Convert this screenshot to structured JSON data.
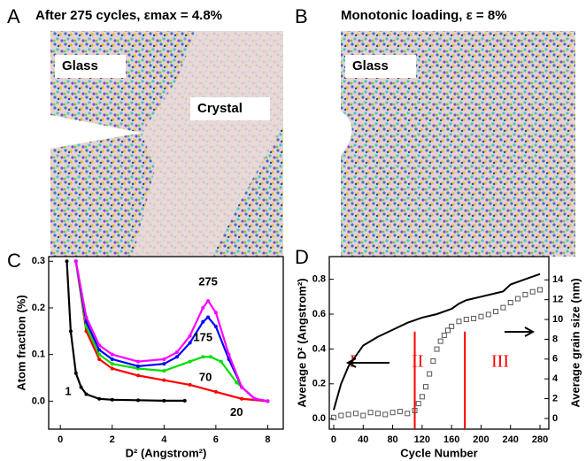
{
  "panels": [
    {
      "letter": "A",
      "title": "After 275 cycles, εmax = 4.8%",
      "labels": [
        "Glass",
        "Crystal"
      ]
    },
    {
      "letter": "B",
      "title": "Monotonic loading, ε = 8%",
      "labels": [
        "Glass"
      ]
    }
  ],
  "chart_data": [
    {
      "type": "line",
      "letter": "C",
      "xlabel": "D² (Angstrom²)",
      "ylabel": "Atom fraction (%)",
      "xlim": [
        -0.45,
        8.6
      ],
      "ylim": [
        -0.06,
        0.31
      ],
      "xticks": [
        0,
        2,
        4,
        6,
        8
      ],
      "yticks": [
        {
          "value": 0,
          "label": "0.0"
        },
        0.1,
        0.2,
        0.3
      ],
      "series": [
        {
          "name": "1",
          "color": "#000000",
          "x": [
            0.25,
            0.4,
            0.6,
            0.8,
            1,
            1.5,
            2,
            3,
            4,
            4.8
          ],
          "values": [
            0.3,
            0.15,
            0.06,
            0.03,
            0.015,
            0.005,
            0.003,
            0.002,
            0.001,
            0.001
          ]
        },
        {
          "name": "20",
          "color": "#ff0000",
          "x": [
            0.6,
            1,
            1.5,
            2,
            3,
            4,
            5,
            6,
            7,
            8
          ],
          "values": [
            0.3,
            0.15,
            0.09,
            0.07,
            0.055,
            0.045,
            0.035,
            0.02,
            0.005,
            0
          ]
        },
        {
          "name": "70",
          "color": "#00dd00",
          "x": [
            0.6,
            1,
            1.5,
            2,
            3,
            4,
            5,
            5.5,
            5.8,
            6.2,
            6.8,
            7.5,
            8
          ],
          "values": [
            0.3,
            0.16,
            0.1,
            0.08,
            0.07,
            0.065,
            0.085,
            0.095,
            0.095,
            0.085,
            0.04,
            0.005,
            0
          ]
        },
        {
          "name": "175",
          "color": "#0000ff",
          "x": [
            0.6,
            1,
            1.5,
            2,
            3,
            4,
            4.5,
            5,
            5.5,
            5.7,
            6,
            6.5,
            7,
            7.5,
            8
          ],
          "values": [
            0.3,
            0.17,
            0.11,
            0.09,
            0.075,
            0.08,
            0.095,
            0.125,
            0.17,
            0.18,
            0.16,
            0.09,
            0.03,
            0.005,
            0
          ]
        },
        {
          "name": "275",
          "color": "#ff00ff",
          "x": [
            0.6,
            1,
            1.5,
            2,
            3,
            4,
            4.5,
            5,
            5.5,
            5.7,
            6,
            6.5,
            7,
            7.5,
            8
          ],
          "values": [
            0.3,
            0.18,
            0.12,
            0.1,
            0.085,
            0.09,
            0.105,
            0.14,
            0.2,
            0.215,
            0.19,
            0.1,
            0.03,
            0.005,
            0
          ]
        }
      ]
    },
    {
      "type": "line",
      "letter": "D",
      "xlabel": "Cycle Number",
      "ylabel": "Average D² (Angstrom²)",
      "y2label": "Average grain size (nm)",
      "xlim": [
        -6,
        292
      ],
      "ylim": [
        -0.06,
        0.93
      ],
      "y2lim": [
        -1.08,
        16.35
      ],
      "xticks": [
        0,
        40,
        80,
        120,
        160,
        200,
        240,
        280
      ],
      "yticks": [
        {
          "value": 0,
          "label": "0.0"
        },
        0.2,
        0.4,
        0.6,
        0.8
      ],
      "y2ticks": [
        0,
        2,
        4,
        6,
        8,
        10,
        12,
        14
      ],
      "vlines": [
        110,
        178
      ],
      "vline_color": "#ff0000",
      "annotations": [
        "I",
        "II",
        "III"
      ],
      "series": [
        {
          "color": "#000000",
          "x": [
            0,
            10,
            20,
            40,
            60,
            80,
            100,
            120,
            140,
            160,
            170,
            180,
            200,
            220,
            230,
            240,
            260,
            280
          ],
          "values": [
            0.05,
            0.2,
            0.3,
            0.42,
            0.47,
            0.51,
            0.55,
            0.58,
            0.6,
            0.63,
            0.66,
            0.68,
            0.7,
            0.72,
            0.73,
            0.77,
            0.8,
            0.83
          ]
        },
        {
          "color": "#555555",
          "axis": "y2",
          "marker": "square",
          "x": [
            0,
            10,
            20,
            30,
            40,
            50,
            60,
            70,
            80,
            90,
            100,
            110,
            115,
            120,
            125,
            130,
            135,
            140,
            145,
            150,
            155,
            160,
            170,
            180,
            190,
            200,
            210,
            220,
            230,
            240,
            250,
            260,
            270,
            280
          ],
          "values": [
            0.1,
            0.3,
            0.4,
            0.5,
            0.3,
            0.6,
            0.5,
            0.4,
            0.6,
            0.7,
            0.5,
            0.8,
            1.5,
            2.2,
            3.2,
            4.5,
            5.8,
            7,
            7.8,
            8.4,
            8.9,
            9.3,
            9.8,
            10,
            10.1,
            10.3,
            10.5,
            10.8,
            11.2,
            11.7,
            12.1,
            12.5,
            12.8,
            13
          ]
        }
      ]
    }
  ]
}
